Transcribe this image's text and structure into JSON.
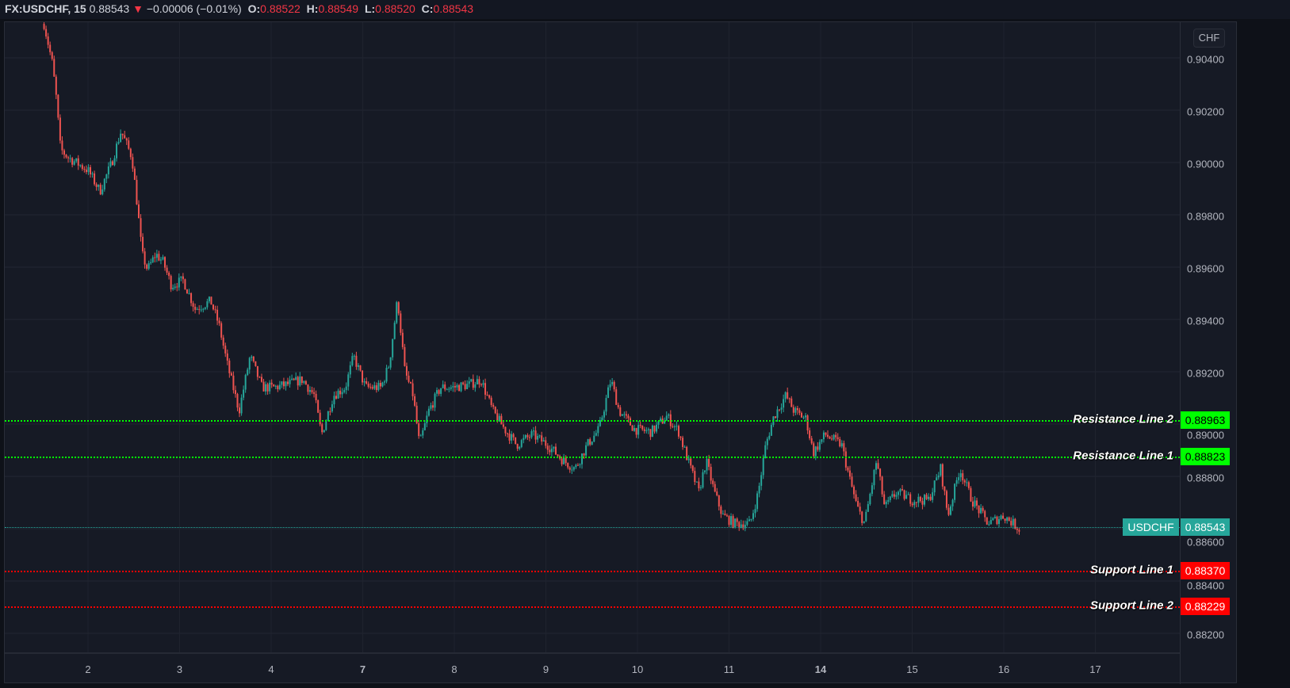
{
  "header": {
    "symbol": "FX:USDCHF, 15",
    "last": "0.88543",
    "change_icon": "triangle-down-icon",
    "change": "−0.00006 (−0.01%)",
    "open_label": "O:",
    "open": "0.88522",
    "high_label": "H:",
    "high": "0.88549",
    "low_label": "L:",
    "low": "0.88520",
    "close_label": "C:",
    "close": "0.88543"
  },
  "currency_button": "CHF",
  "colors": {
    "up": "#26a69a",
    "down": "#ef5350",
    "resistance": "#00ff00",
    "support": "#ff0000",
    "background": "#161a25"
  },
  "current_price": {
    "symbol": "USDCHF",
    "value": "0.88543"
  },
  "levels": [
    {
      "name": "Resistance Line 2",
      "value": "0.88963",
      "type": "resistance"
    },
    {
      "name": "Resistance Line 1",
      "value": "0.88823",
      "type": "resistance"
    },
    {
      "name": "Support Line 1",
      "value": "0.88370",
      "type": "support"
    },
    {
      "name": "Support Line 2",
      "value": "0.88229",
      "type": "support"
    }
  ],
  "chart_data": {
    "type": "candlestick",
    "title": "FX:USDCHF, 15",
    "y_ticks": [
      "0.90400",
      "0.90200",
      "0.90000",
      "0.89800",
      "0.89600",
      "0.89400",
      "0.89200",
      "0.89000",
      "0.88800",
      "0.88600",
      "0.88400",
      "0.88200"
    ],
    "ylim": [
      0.8818,
      0.9053
    ],
    "x_ticks": [
      "2",
      "3",
      "4",
      "7",
      "8",
      "9",
      "10",
      "11",
      "14",
      "15",
      "16",
      "17"
    ],
    "x_bold_ticks": [
      "7",
      "14"
    ],
    "grid": true,
    "price_path_trading_day_vs_price": [
      [
        -0.48,
        0.9053
      ],
      [
        -0.39,
        0.9038
      ],
      [
        -0.35,
        0.9026
      ],
      [
        -0.3,
        0.9005
      ],
      [
        -0.22,
        0.9002
      ],
      [
        -0.13,
        0.9
      ],
      [
        0,
        0.8997
      ],
      [
        0.13,
        0.8989
      ],
      [
        0.26,
        0.9
      ],
      [
        0.36,
        0.9012
      ],
      [
        0.48,
        0.9002
      ],
      [
        0.54,
        0.8983
      ],
      [
        0.59,
        0.8965
      ],
      [
        0.65,
        0.8959
      ],
      [
        0.74,
        0.8965
      ],
      [
        0.82,
        0.8962
      ],
      [
        0.91,
        0.8953
      ],
      [
        1.04,
        0.8955
      ],
      [
        1.17,
        0.8944
      ],
      [
        1.34,
        0.8947
      ],
      [
        1.43,
        0.8938
      ],
      [
        1.52,
        0.8923
      ],
      [
        1.65,
        0.8905
      ],
      [
        1.77,
        0.8926
      ],
      [
        1.9,
        0.8914
      ],
      [
        2.03,
        0.8914
      ],
      [
        2.16,
        0.8915
      ],
      [
        2.34,
        0.8917
      ],
      [
        2.47,
        0.8911
      ],
      [
        2.55,
        0.8896
      ],
      [
        2.68,
        0.8911
      ],
      [
        2.81,
        0.8914
      ],
      [
        2.9,
        0.8926
      ],
      [
        3.03,
        0.8914
      ],
      [
        3.2,
        0.8914
      ],
      [
        3.29,
        0.8923
      ],
      [
        3.38,
        0.8948
      ],
      [
        3.46,
        0.892
      ],
      [
        3.55,
        0.8911
      ],
      [
        3.62,
        0.8892
      ],
      [
        3.72,
        0.8905
      ],
      [
        3.85,
        0.8914
      ],
      [
        3.98,
        0.8914
      ],
      [
        4.16,
        0.8915
      ],
      [
        4.29,
        0.8917
      ],
      [
        4.42,
        0.8905
      ],
      [
        4.55,
        0.8898
      ],
      [
        4.68,
        0.8892
      ],
      [
        4.85,
        0.8896
      ],
      [
        5.02,
        0.8892
      ],
      [
        5.19,
        0.8886
      ],
      [
        5.32,
        0.8883
      ],
      [
        5.45,
        0.8892
      ],
      [
        5.58,
        0.8898
      ],
      [
        5.71,
        0.8917
      ],
      [
        5.8,
        0.8905
      ],
      [
        5.97,
        0.8898
      ],
      [
        6.15,
        0.8897
      ],
      [
        6.32,
        0.8903
      ],
      [
        6.45,
        0.8897
      ],
      [
        6.58,
        0.8883
      ],
      [
        6.67,
        0.8874
      ],
      [
        6.75,
        0.8886
      ],
      [
        6.84,
        0.8874
      ],
      [
        6.93,
        0.8865
      ],
      [
        7.06,
        0.8862
      ],
      [
        7.23,
        0.8862
      ],
      [
        7.32,
        0.8874
      ],
      [
        7.4,
        0.8892
      ],
      [
        7.49,
        0.8903
      ],
      [
        7.62,
        0.8911
      ],
      [
        7.71,
        0.8905
      ],
      [
        7.84,
        0.8902
      ],
      [
        7.92,
        0.8889
      ],
      [
        8.05,
        0.8896
      ],
      [
        8.23,
        0.8892
      ],
      [
        8.31,
        0.888
      ],
      [
        8.4,
        0.8868
      ],
      [
        8.48,
        0.8862
      ],
      [
        8.61,
        0.8886
      ],
      [
        8.7,
        0.8868
      ],
      [
        8.83,
        0.8874
      ],
      [
        9.0,
        0.8871
      ],
      [
        9.18,
        0.8871
      ],
      [
        9.31,
        0.8883
      ],
      [
        9.39,
        0.8865
      ],
      [
        9.52,
        0.8883
      ],
      [
        9.65,
        0.8871
      ],
      [
        9.83,
        0.8862
      ],
      [
        10.0,
        0.8865
      ],
      [
        10.17,
        0.886
      ]
    ]
  }
}
